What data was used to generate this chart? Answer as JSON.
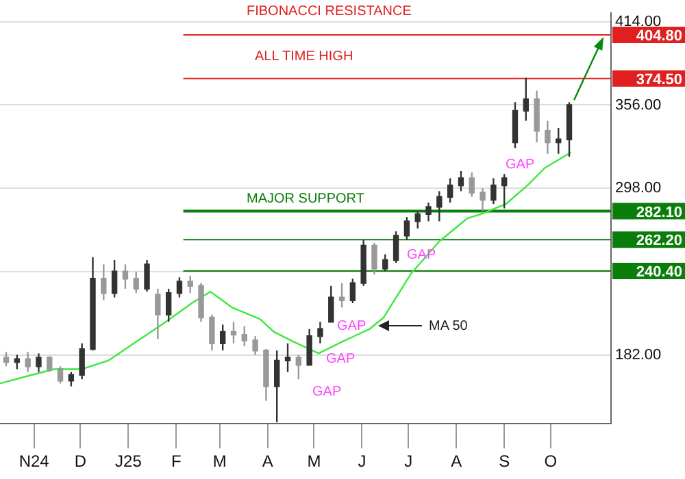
{
  "chart_data": {
    "type": "candlestick",
    "colors": [
      "#999999",
      "#333333",
      "#999999",
      "#333333",
      "#999999",
      "#999999",
      "#333333",
      "#333333",
      "#333333",
      "#999999",
      "#333333",
      "#999999",
      "#999999",
      "#333333",
      "#999999",
      "#333333",
      "#333333",
      "#999999",
      "#999999",
      "#999999",
      "#333333",
      "#999999",
      "#999999",
      "#999999",
      "#999999",
      "#333333",
      "#333333",
      "#999999",
      "#333333",
      "#333333",
      "#333333",
      "#999999",
      "#333333",
      "#333333",
      "#999999",
      "#333333",
      "#333333",
      "#333333",
      "#333333",
      "#333333",
      "#333333",
      "#333333",
      "#333333",
      "#999999",
      "#999999",
      "#333333",
      "#333333",
      "#333333",
      "#333333",
      "#999999",
      "#999999",
      "#333333",
      "#333333"
    ],
    "x": [
      "2024-10-14",
      "2024-10-21",
      "2024-10-28",
      "2024-11-04",
      "2024-11-11",
      "2024-11-18",
      "2024-11-25",
      "2024-12-02",
      "2024-12-09",
      "2024-12-16",
      "2024-12-23",
      "2024-12-30",
      "2025-01-06",
      "2025-01-13",
      "2025-01-20",
      "2025-01-27",
      "2025-02-03",
      "2025-02-10",
      "2025-02-17",
      "2025-02-24",
      "2025-03-03",
      "2025-03-10",
      "2025-03-17",
      "2025-03-24",
      "2025-03-31",
      "2025-04-07",
      "2025-04-14",
      "2025-04-21",
      "2025-04-28",
      "2025-05-05",
      "2025-05-12",
      "2025-05-19",
      "2025-05-26",
      "2025-06-02",
      "2025-06-09",
      "2025-06-16",
      "2025-06-23",
      "2025-06-30",
      "2025-07-07",
      "2025-07-14",
      "2025-07-21",
      "2025-07-28",
      "2025-08-04",
      "2025-08-11",
      "2025-08-18",
      "2025-08-25",
      "2025-09-01",
      "2025-09-08",
      "2025-09-15",
      "2025-09-22",
      "2025-09-29",
      "2025-10-06",
      "2025-10-13"
    ],
    "ohlc": [
      [
        180,
        184,
        174,
        177
      ],
      [
        177,
        182,
        172,
        179
      ],
      [
        179,
        184,
        170,
        174
      ],
      [
        174,
        183,
        170,
        180
      ],
      [
        180,
        181,
        170,
        172
      ],
      [
        172,
        174,
        162,
        164
      ],
      [
        164,
        170,
        160,
        168
      ],
      [
        168,
        190,
        165,
        186
      ],
      [
        186,
        250,
        185,
        235
      ],
      [
        235,
        245,
        220,
        225
      ],
      [
        225,
        248,
        222,
        240
      ],
      [
        240,
        245,
        228,
        235
      ],
      [
        235,
        240,
        225,
        228
      ],
      [
        228,
        248,
        226,
        245
      ],
      [
        224,
        228,
        193,
        210
      ],
      [
        210,
        228,
        205,
        225
      ],
      [
        225,
        236,
        222,
        233
      ],
      [
        233,
        237,
        225,
        230
      ],
      [
        230,
        232,
        205,
        208
      ],
      [
        208,
        210,
        185,
        190
      ],
      [
        190,
        203,
        185,
        198
      ],
      [
        198,
        205,
        190,
        196
      ],
      [
        196,
        202,
        188,
        192
      ],
      [
        192,
        195,
        182,
        185
      ],
      [
        185,
        186,
        150,
        160
      ],
      [
        160,
        185,
        135,
        178
      ],
      [
        178,
        190,
        170,
        180
      ],
      [
        180,
        182,
        165,
        175
      ],
      [
        175,
        200,
        175,
        195
      ],
      [
        195,
        205,
        190,
        200
      ],
      [
        205,
        230,
        205,
        222
      ],
      [
        222,
        232,
        215,
        220
      ],
      [
        220,
        235,
        218,
        232
      ],
      [
        232,
        262,
        230,
        258
      ],
      [
        258,
        260,
        238,
        242
      ],
      [
        242,
        252,
        240,
        248
      ],
      [
        248,
        268,
        246,
        265
      ],
      [
        265,
        278,
        262,
        275
      ],
      [
        275,
        282,
        270,
        280
      ],
      [
        280,
        288,
        275,
        285
      ],
      [
        285,
        296,
        275,
        292
      ],
      [
        292,
        305,
        288,
        300
      ],
      [
        300,
        310,
        296,
        305
      ],
      [
        305,
        309,
        292,
        295
      ],
      [
        295,
        298,
        282,
        290
      ],
      [
        290,
        305,
        287,
        300
      ],
      [
        300,
        308,
        284,
        305
      ],
      [
        330,
        358,
        326,
        352
      ],
      [
        352,
        375,
        345,
        360
      ],
      [
        360,
        366,
        330,
        338
      ],
      [
        338,
        345,
        322,
        330
      ],
      [
        330,
        340,
        322,
        332
      ],
      [
        332,
        358,
        320,
        356
      ]
    ],
    "series": [
      {
        "type": "line",
        "color": "#3ee83e",
        "x": [
          "2024-10-10",
          "2024-10-27",
          "2024-11-14",
          "2024-12-02",
          "2024-12-19",
          "2025-01-06",
          "2025-01-24",
          "2025-02-11",
          "2025-02-23",
          "2025-03-09",
          "2025-03-27",
          "2025-04-05",
          "2025-04-18",
          "2025-05-04",
          "2025-05-19",
          "2025-06-06",
          "2025-06-15",
          "2025-07-03",
          "2025-07-21",
          "2025-08-08",
          "2025-08-17",
          "2025-09-02",
          "2025-09-16",
          "2025-09-27",
          "2025-10-14"
        ],
        "values": [
          162,
          167,
          172,
          172,
          178,
          191,
          204,
          218,
          226,
          215,
          207,
          198,
          191,
          183,
          191,
          200,
          208,
          239,
          261,
          277,
          280,
          287,
          300,
          312,
          323
        ]
      }
    ],
    "xlim": [
      "2024-10-10",
      "2025-11-09"
    ],
    "xticks": [
      {
        "value": "2024-11-01",
        "label": "N24"
      },
      {
        "value": "2024-12-01",
        "label": "D"
      },
      {
        "value": "2025-01-01",
        "label": "J25"
      },
      {
        "value": "2025-02-01",
        "label": "F"
      },
      {
        "value": "2025-03-01",
        "label": "M"
      },
      {
        "value": "2025-04-01",
        "label": "A"
      },
      {
        "value": "2025-05-01",
        "label": "M"
      },
      {
        "value": "2025-06-01",
        "label": "J"
      },
      {
        "value": "2025-07-01",
        "label": "J"
      },
      {
        "value": "2025-08-01",
        "label": "A"
      },
      {
        "value": "2025-09-01",
        "label": "S"
      },
      {
        "value": "2025-10-01",
        "label": "O"
      }
    ],
    "ylim": [
      134,
      420
    ],
    "yticks": [
      {
        "value": 182,
        "label": "182.00"
      },
      {
        "value": 240,
        "label": null
      },
      {
        "value": 298,
        "label": "298.00"
      },
      {
        "value": 356,
        "label": "356.00"
      },
      {
        "value": 414,
        "label": "414.00"
      }
    ],
    "grid": "y",
    "legend": false,
    "ref_lines": [
      {
        "axis": "y",
        "value": 404.8,
        "label": "404.80",
        "color": "#e02020"
      },
      {
        "axis": "y",
        "value": 374.5,
        "label": "374.50",
        "color": "#e02020"
      },
      {
        "axis": "y",
        "value": 282.1,
        "label": "282.10",
        "color": "#0a7d0a"
      },
      {
        "axis": "y",
        "value": 262.2,
        "label": "262.20",
        "color": "#0a7d0a"
      },
      {
        "axis": "y",
        "value": 240.4,
        "label": "240.40",
        "color": "#0a7d0a"
      }
    ],
    "annotations": [
      "FIBONACCI RESISTANCE",
      "ALL TIME HIGH",
      "MAJOR SUPPORT",
      "GAP",
      "GAP",
      "GAP",
      "GAP",
      "GAP",
      "MA 50"
    ]
  }
}
